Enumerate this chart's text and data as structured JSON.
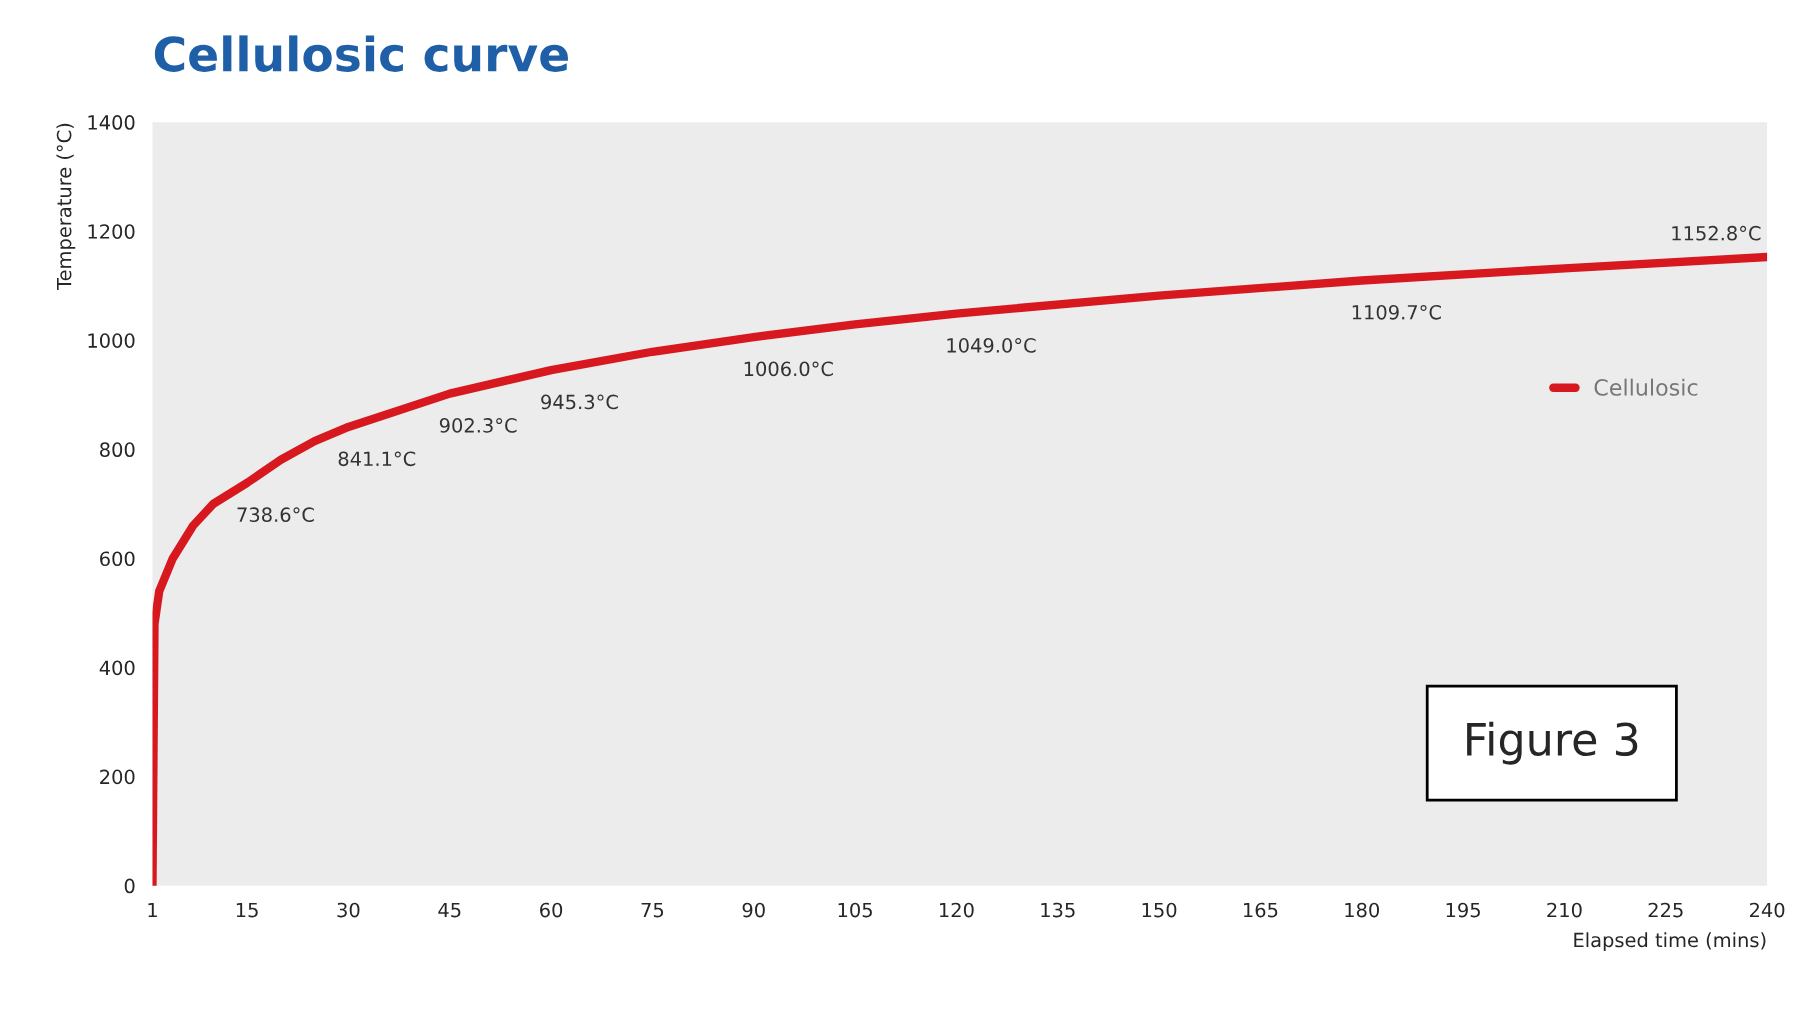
{
  "chart_data": {
    "type": "line",
    "title": "Cellulosic curve",
    "xlabel": "Elapsed time (mins)",
    "ylabel": "Temperature (°C)",
    "x": [
      1,
      1.3,
      2,
      4,
      7,
      10,
      15,
      20,
      25,
      30,
      45,
      60,
      75,
      90,
      105,
      120,
      150,
      180,
      210,
      240
    ],
    "series": [
      {
        "name": "Cellulosic",
        "color": "#d7191f",
        "values": [
          0,
          480,
          540,
          600,
          660,
          700,
          738.6,
          781,
          815,
          841.1,
          902.3,
          945.3,
          979,
          1006.0,
          1029,
          1049.0,
          1082,
          1109.7,
          1132,
          1152.8
        ],
        "value_labels": [
          null,
          null,
          null,
          null,
          null,
          null,
          "738.6°C",
          null,
          null,
          "841.1°C",
          "902.3°C",
          "945.3°C",
          null,
          "1006.0°C",
          null,
          "1049.0°C",
          null,
          "1109.7°C",
          null,
          "1152.8°C"
        ]
      }
    ],
    "xlim": [
      1,
      240
    ],
    "ylim": [
      0,
      1400
    ],
    "xticks": [
      1,
      15,
      30,
      45,
      60,
      75,
      90,
      105,
      120,
      135,
      150,
      165,
      180,
      195,
      210,
      225,
      240
    ],
    "yticks": [
      0,
      200,
      400,
      600,
      800,
      1000,
      1200,
      1400
    ],
    "grid": false,
    "legend": "right",
    "marker": "none",
    "line_style": "solid",
    "annotations": [
      "Figure 3"
    ]
  }
}
